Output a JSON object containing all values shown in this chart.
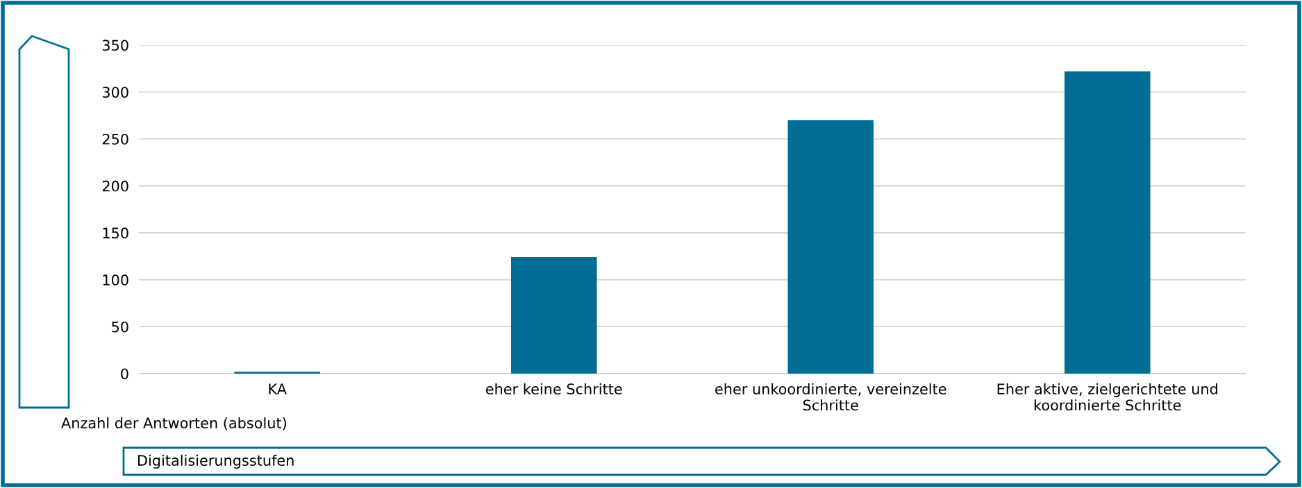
{
  "chart_data": {
    "type": "bar",
    "xlabel": "Digitalisierungsstufen",
    "ylabel": "Anzahl der Antworten (absolut)",
    "categories": [
      "KA",
      "eher keine Schritte",
      "eher unkoordinierte, vereinzelte\nSchritte",
      "Eher aktive, zielgerichtete und\nkoordinierte Schritte"
    ],
    "values": [
      2,
      124,
      270,
      322
    ],
    "color": "#006e94",
    "ylim": [
      0,
      350
    ],
    "yticks": [
      0,
      50,
      100,
      150,
      200,
      250,
      300,
      350
    ],
    "grid": "y",
    "legend": false
  }
}
